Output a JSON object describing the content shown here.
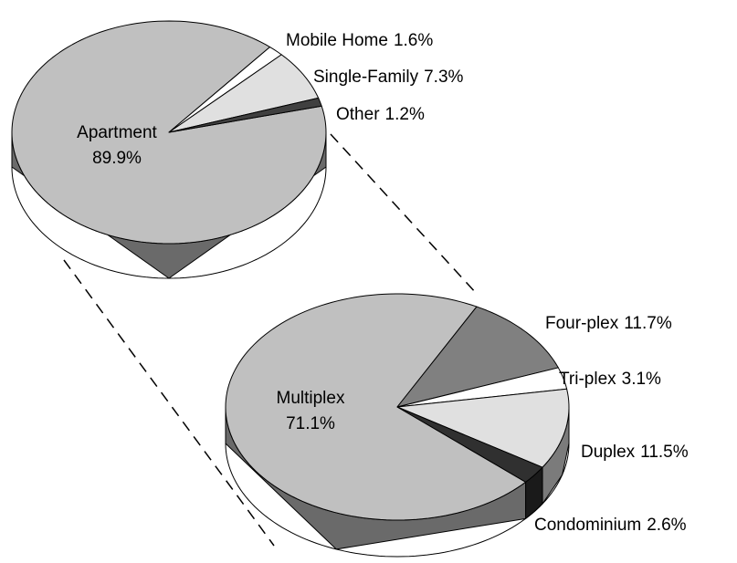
{
  "chart_data": [
    {
      "type": "pie",
      "categories": [
        "Apartment",
        "Mobile Home",
        "Single-Family",
        "Other"
      ],
      "values": [
        89.9,
        1.6,
        7.3,
        1.2
      ],
      "value_labels": [
        "89.9%",
        "1.6%",
        "7.3%",
        "1.2%"
      ],
      "colors": [
        "#c0c0c0",
        "#ffffff",
        "#e0e0e0",
        "#404040"
      ]
    },
    {
      "type": "pie",
      "categories": [
        "Multiplex",
        "Four-plex",
        "Tri-plex",
        "Duplex",
        "Condominium"
      ],
      "values": [
        71.1,
        11.7,
        3.1,
        11.5,
        2.6
      ],
      "value_labels": [
        "71.1%",
        "11.7%",
        "3.1%",
        "11.5%",
        "2.6%"
      ],
      "colors": [
        "#c0c0c0",
        "#808080",
        "#ffffff",
        "#e0e0e0",
        "#303030"
      ]
    }
  ]
}
